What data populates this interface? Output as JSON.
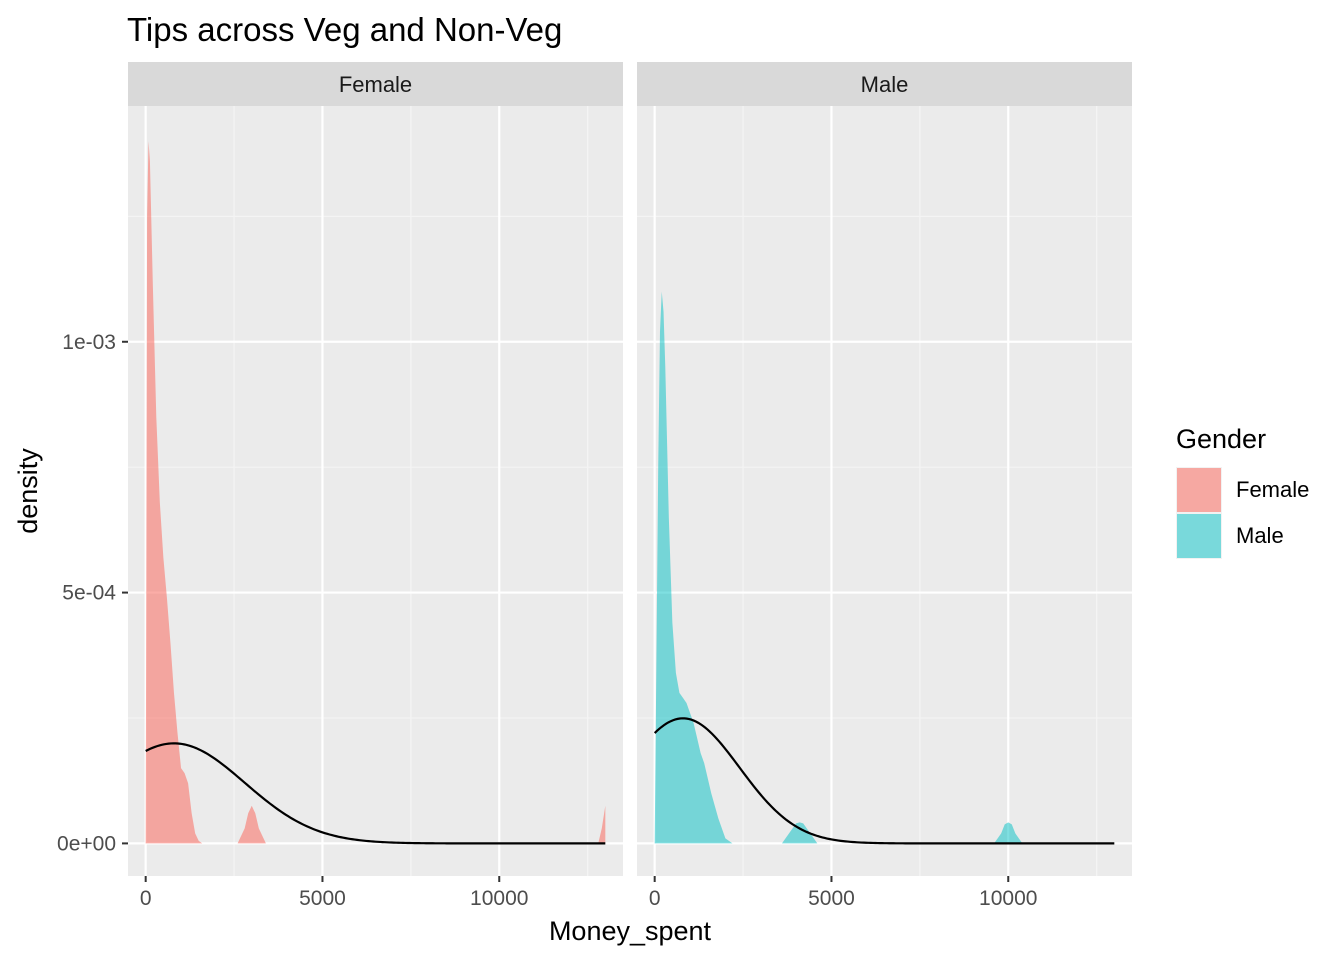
{
  "chart_data": {
    "type": "area",
    "title": "Tips across Veg and Non-Veg",
    "xlabel": "Money_spent",
    "ylabel": "density",
    "xlim": [
      -500,
      13500
    ],
    "ylim": [
      -6.5e-05,
      0.00147
    ],
    "x_ticks": [
      0,
      5000,
      10000
    ],
    "x_tick_labels": [
      "0",
      "5000",
      "10000"
    ],
    "y_ticks": [
      0,
      0.0005,
      0.001
    ],
    "y_tick_labels": [
      "0e+00",
      "5e-04",
      "1e-03"
    ],
    "grid": true,
    "legend": {
      "title": "Gender",
      "placement": "right",
      "entries": [
        {
          "label": "Female",
          "color": "#F8766D"
        },
        {
          "label": "Male",
          "color": "#00BFC4"
        }
      ]
    },
    "panels": [
      {
        "strip": "Female",
        "fill_color": "#F8766D",
        "density_curve": {
          "x": [
            0,
            40,
            80,
            120,
            200,
            300,
            400,
            500,
            600,
            700,
            800,
            900,
            1000,
            1100,
            1200,
            1300,
            1400,
            1500,
            1600,
            2600,
            2800,
            2900,
            3000,
            3100,
            3200,
            3400,
            12800,
            12900,
            13000
          ],
          "y": [
            0,
            0.00125,
            0.0014,
            0.00136,
            0.00112,
            0.00085,
            0.00068,
            0.00057,
            0.00049,
            0.0004,
            0.0003,
            0.00022,
            0.00015,
            0.00014,
            0.00012,
            6e-05,
            2e-05,
            5e-06,
            0,
            0,
            3e-05,
            6e-05,
            7.5e-05,
            6e-05,
            3e-05,
            0,
            0,
            3e-05,
            7.5e-05
          ]
        },
        "normal_fit": {
          "mean": 800,
          "sd": 2000
        }
      },
      {
        "strip": "Male",
        "fill_color": "#00BFC4",
        "density_curve": {
          "x": [
            0,
            100,
            150,
            200,
            250,
            300,
            400,
            500,
            600,
            700,
            800,
            900,
            1000,
            1100,
            1200,
            1300,
            1400,
            1500,
            1600,
            1800,
            2000,
            2200,
            3600,
            3800,
            4000,
            4100,
            4200,
            4400,
            4600,
            9600,
            9800,
            9900,
            10000,
            10100,
            10200,
            10400
          ],
          "y": [
            0,
            0.00075,
            0.00102,
            0.0011,
            0.00106,
            0.00095,
            0.00065,
            0.00044,
            0.00034,
            0.0003,
            0.00029,
            0.00028,
            0.00026,
            0.00024,
            0.00021,
            0.00018,
            0.00016,
            0.00013,
            0.0001,
            5e-05,
            1e-05,
            0,
            0,
            2e-05,
            4e-05,
            4.2e-05,
            4e-05,
            2e-05,
            0,
            0,
            2e-05,
            3.8e-05,
            4.2e-05,
            3.8e-05,
            2e-05,
            0
          ]
        },
        "normal_fit": {
          "mean": 800,
          "sd": 1600
        }
      }
    ]
  }
}
